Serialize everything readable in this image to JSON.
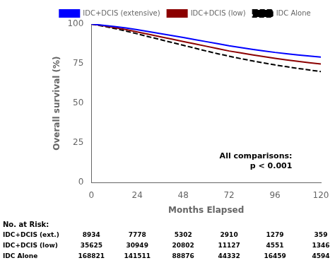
{
  "chart_data": {
    "type": "line",
    "xlabel": "Months Elapsed",
    "ylabel": "Overall survival (%)",
    "xlim": [
      0,
      120
    ],
    "ylim": [
      0,
      100
    ],
    "xticks": [
      0,
      24,
      48,
      72,
      96,
      120
    ],
    "yticks": [
      0,
      25,
      50,
      75,
      100
    ],
    "grid": false,
    "legend": "top",
    "x": [
      0,
      6,
      12,
      18,
      24,
      30,
      36,
      42,
      48,
      54,
      60,
      66,
      72,
      78,
      84,
      90,
      96,
      102,
      108,
      114,
      120
    ],
    "series": [
      {
        "name": "IDC+DCIS (extensive)",
        "color": "#0000ff",
        "line_style": "solid",
        "values": [
          100,
          99.2,
          98.4,
          97.5,
          96.4,
          95.2,
          94.0,
          92.8,
          91.5,
          90.2,
          88.9,
          87.6,
          86.3,
          85.2,
          84.1,
          83.1,
          82.1,
          81.3,
          80.5,
          79.8,
          79.2
        ]
      },
      {
        "name": "IDC+DCIS (low)",
        "color": "#8b0000",
        "line_style": "solid",
        "values": [
          100,
          99.0,
          97.8,
          96.5,
          95.0,
          93.5,
          92.0,
          90.5,
          89.0,
          87.5,
          86.0,
          84.5,
          83.0,
          81.8,
          80.6,
          79.5,
          78.4,
          77.4,
          76.5,
          75.6,
          74.8
        ]
      },
      {
        "name": "IDC Alone",
        "color": "#000000",
        "line_style": "dashed",
        "values": [
          100,
          98.7,
          97.2,
          95.6,
          93.8,
          92.0,
          90.2,
          88.4,
          86.6,
          84.8,
          83.0,
          81.3,
          79.7,
          78.2,
          76.8,
          75.5,
          74.2,
          73.1,
          72.0,
          71.0,
          70.0
        ]
      }
    ],
    "annotations": [
      {
        "text": "All comparisons:",
        "x": 105,
        "y": 14
      },
      {
        "text": "p < 0.001",
        "x": 105,
        "y": 8
      }
    ],
    "at_risk": {
      "title": "No. at Risk:",
      "x": [
        0,
        24,
        48,
        72,
        96,
        120
      ],
      "rows": [
        {
          "label": "IDC+DCIS (ext.)",
          "values": [
            8934,
            7778,
            5302,
            2910,
            1279,
            359
          ]
        },
        {
          "label": "IDC+DCIS (low)",
          "values": [
            35625,
            30949,
            20802,
            11127,
            4551,
            1346
          ]
        },
        {
          "label": "IDC Alone",
          "values": [
            168821,
            141511,
            88876,
            44332,
            16459,
            4594
          ]
        }
      ]
    }
  }
}
